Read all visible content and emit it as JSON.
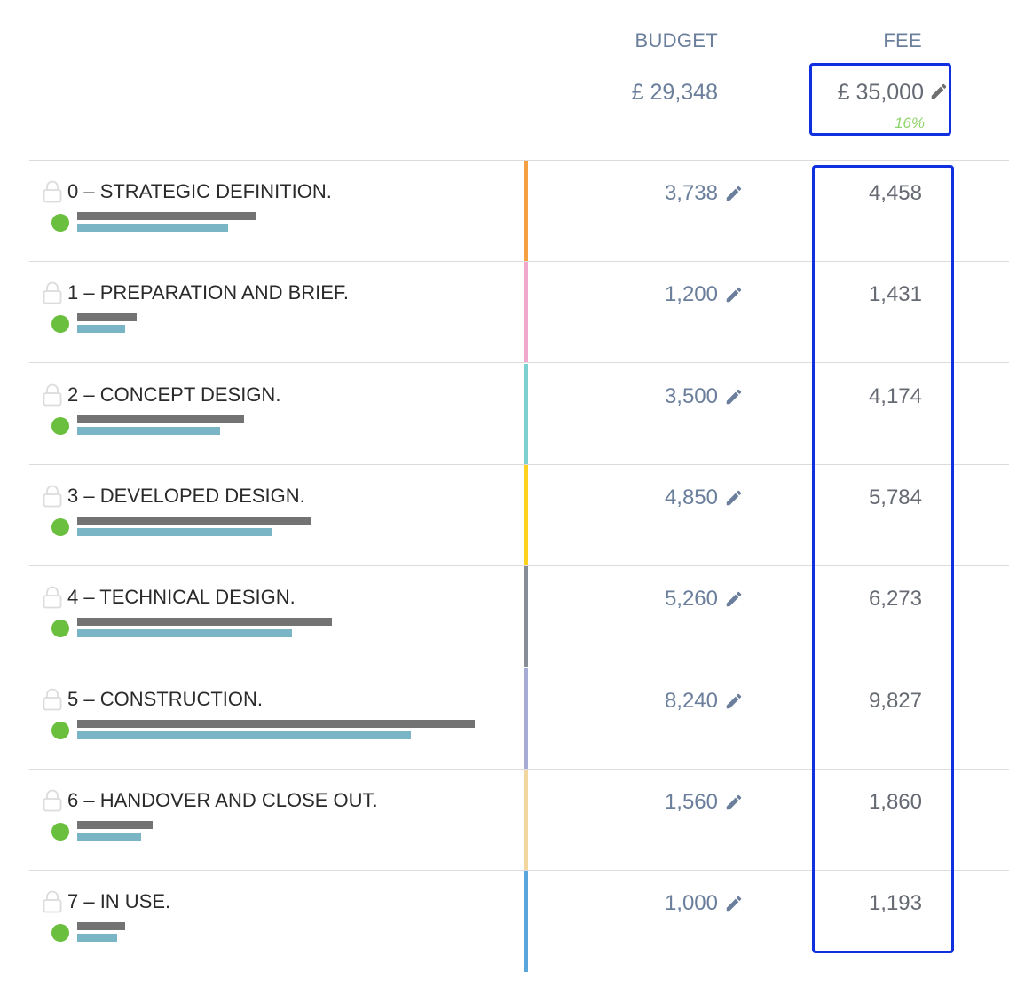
{
  "header": {
    "budget_label": "BUDGET",
    "fee_label": "FEE",
    "budget_total": "£ 29,348",
    "fee_total": "£ 35,000",
    "fee_percent": "16%"
  },
  "colors": {
    "highlight_box": "#1030e0",
    "status_ok": "#6bbf3f",
    "percent": "#8fd46b"
  },
  "stages": [
    {
      "name": "0 – STRATEGIC DEFINITION.",
      "budget": "3,738",
      "fee": "4,458",
      "color": "#f4a043",
      "status": "complete",
      "grey_bar": 0.45,
      "teal_bar": 0.38
    },
    {
      "name": "1 – PREPARATION AND BRIEF.",
      "budget": "1,200",
      "fee": "1,431",
      "color": "#f0a8cc",
      "status": "complete",
      "grey_bar": 0.15,
      "teal_bar": 0.12
    },
    {
      "name": "2 – CONCEPT DESIGN.",
      "budget": "3,500",
      "fee": "4,174",
      "color": "#7dd0cf",
      "status": "complete",
      "grey_bar": 0.42,
      "teal_bar": 0.36
    },
    {
      "name": "3 – DEVELOPED DESIGN.",
      "budget": "4,850",
      "fee": "5,784",
      "color": "#ffd21f",
      "status": "complete",
      "grey_bar": 0.59,
      "teal_bar": 0.49
    },
    {
      "name": "4 – TECHNICAL DESIGN.",
      "budget": "5,260",
      "fee": "6,273",
      "color": "#878e98",
      "status": "complete",
      "grey_bar": 0.64,
      "teal_bar": 0.54
    },
    {
      "name": "5 – CONSTRUCTION.",
      "budget": "8,240",
      "fee": "9,827",
      "color": "#a7acd4",
      "status": "complete",
      "grey_bar": 1.0,
      "teal_bar": 0.84
    },
    {
      "name": "6 – HANDOVER AND CLOSE OUT.",
      "budget": "1,560",
      "fee": "1,860",
      "color": "#f2d6a0",
      "status": "complete",
      "grey_bar": 0.19,
      "teal_bar": 0.16
    },
    {
      "name": "7 – IN USE.",
      "budget": "1,000",
      "fee": "1,193",
      "color": "#5aa5dc",
      "status": "complete",
      "grey_bar": 0.12,
      "teal_bar": 0.1
    }
  ],
  "icons": {
    "lock": "lock-icon",
    "edit": "pencil-icon",
    "status": "status-dot"
  }
}
